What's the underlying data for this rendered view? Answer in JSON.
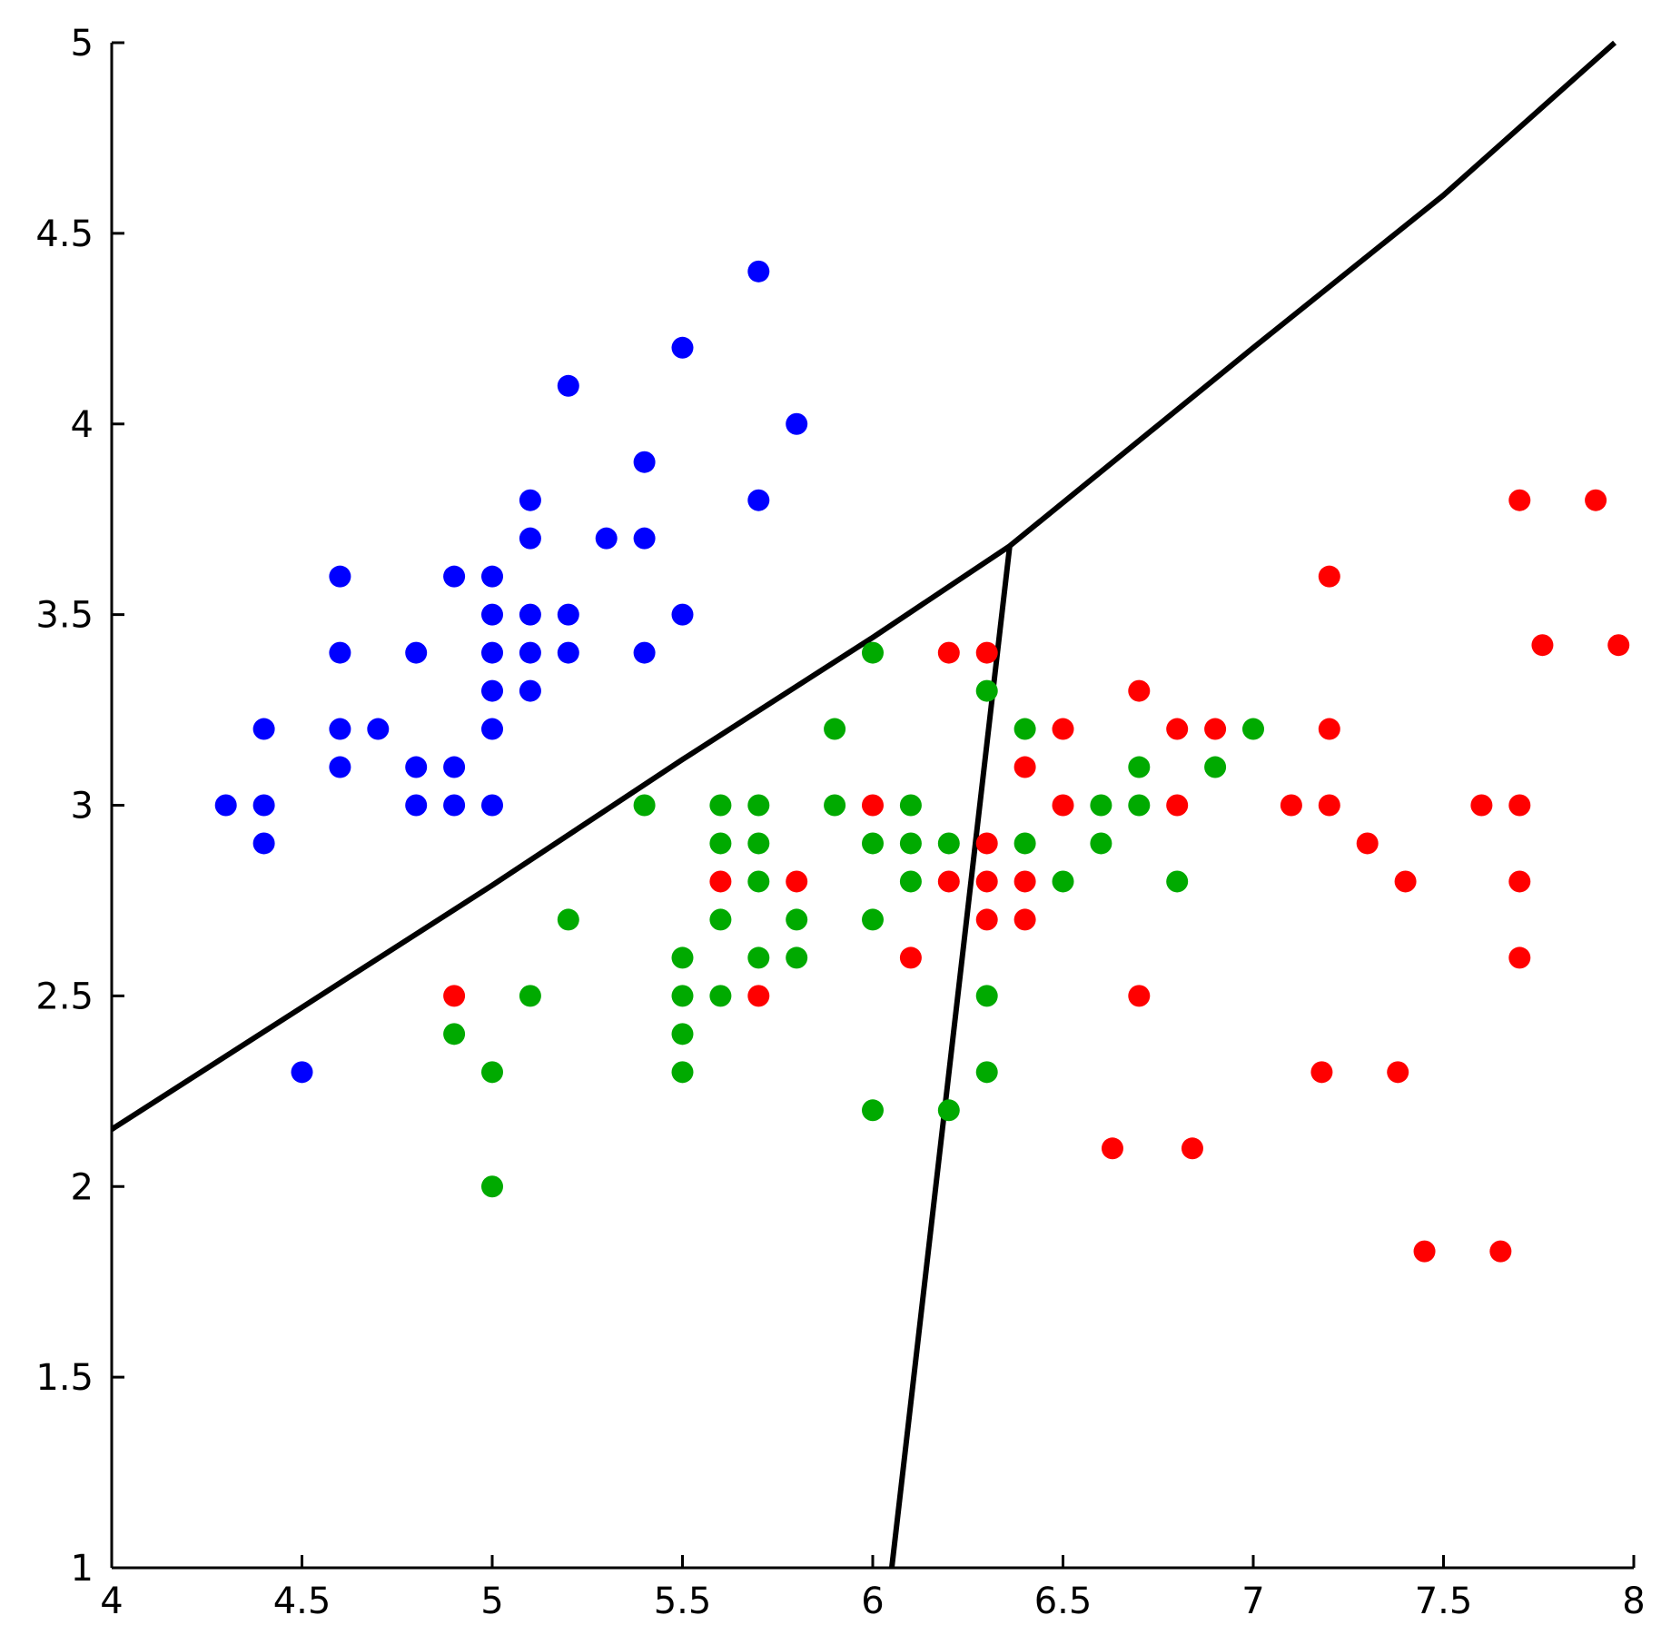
{
  "chart_data": {
    "type": "scatter",
    "xlim": [
      4,
      8
    ],
    "ylim": [
      1,
      5
    ],
    "xticks": [
      4,
      4.5,
      5,
      5.5,
      6,
      6.5,
      7,
      7.5,
      8
    ],
    "yticks": [
      1,
      1.5,
      2,
      2.5,
      3,
      3.5,
      4,
      4.5,
      5
    ],
    "grid": false,
    "series": [
      {
        "color": "#0000ff",
        "x": [
          4.3,
          4.4,
          4.4,
          4.4,
          4.5,
          4.6,
          4.6,
          4.6,
          4.6,
          4.7,
          4.8,
          4.8,
          4.8,
          4.9,
          4.9,
          4.9,
          5.0,
          5.0,
          5.0,
          5.0,
          5.0,
          5.0,
          5.1,
          5.1,
          5.1,
          5.1,
          5.1,
          5.2,
          5.2,
          5.2,
          5.3,
          5.4,
          5.4,
          5.4,
          5.5,
          5.5,
          5.7,
          5.7,
          5.8
        ],
        "values": [
          3.0,
          3.2,
          3.0,
          2.9,
          2.3,
          3.6,
          3.4,
          3.2,
          3.1,
          3.2,
          3.4,
          3.1,
          3.0,
          3.6,
          3.1,
          3.0,
          3.6,
          3.5,
          3.4,
          3.3,
          3.2,
          3.0,
          3.8,
          3.7,
          3.5,
          3.4,
          3.3,
          4.1,
          3.5,
          3.4,
          3.7,
          3.9,
          3.7,
          3.4,
          4.2,
          3.5,
          4.4,
          3.8,
          4.0
        ]
      },
      {
        "color": "#00aa00",
        "x": [
          5.4,
          5.2,
          5.1,
          4.9,
          5.0,
          5.0,
          5.5,
          5.5,
          5.5,
          5.5,
          5.6,
          5.6,
          5.6,
          5.6,
          5.7,
          5.7,
          5.7,
          5.7,
          5.8,
          5.8,
          5.9,
          5.9,
          6.0,
          6.0,
          6.0,
          6.0,
          6.1,
          6.1,
          6.1,
          6.2,
          6.2,
          6.3,
          6.3,
          6.3,
          6.4,
          6.4,
          6.5,
          6.6,
          6.6,
          6.7,
          6.7,
          6.8,
          6.9,
          7.0
        ],
        "values": [
          3.0,
          2.7,
          2.5,
          2.4,
          2.3,
          2.0,
          2.6,
          2.5,
          2.4,
          2.3,
          3.0,
          2.9,
          2.7,
          2.5,
          3.0,
          2.9,
          2.8,
          2.6,
          2.7,
          2.6,
          3.2,
          3.0,
          3.4,
          2.9,
          2.7,
          2.2,
          3.0,
          2.9,
          2.8,
          2.9,
          2.2,
          3.3,
          2.5,
          2.3,
          3.2,
          2.9,
          2.8,
          3.0,
          2.9,
          3.1,
          3.0,
          2.8,
          3.1,
          3.2
        ]
      },
      {
        "color": "#ff0000",
        "x": [
          4.9,
          5.6,
          5.7,
          5.8,
          6.0,
          6.1,
          6.2,
          6.2,
          6.3,
          6.3,
          6.3,
          6.3,
          6.4,
          6.4,
          6.4,
          6.5,
          6.5,
          6.63,
          6.7,
          6.7,
          6.8,
          6.8,
          6.84,
          6.9,
          7.1,
          7.18,
          7.2,
          7.2,
          7.2,
          7.3,
          7.38,
          7.4,
          7.45,
          7.6,
          7.65,
          7.7,
          7.7,
          7.7,
          7.7,
          7.76,
          7.9,
          7.96
        ],
        "values": [
          2.5,
          2.8,
          2.5,
          2.8,
          3.0,
          2.6,
          3.4,
          2.8,
          3.4,
          2.9,
          2.8,
          2.7,
          3.1,
          2.8,
          2.7,
          3.2,
          3.0,
          2.1,
          3.3,
          2.5,
          3.2,
          3.0,
          2.1,
          3.2,
          3.0,
          2.3,
          3.6,
          3.2,
          3.0,
          2.9,
          2.3,
          2.8,
          1.83,
          3.0,
          1.83,
          3.8,
          3.0,
          2.8,
          2.6,
          3.42,
          3.8,
          3.42
        ]
      }
    ],
    "lines": [
      {
        "color": "#000000",
        "x": [
          4,
          4.5,
          5,
          5.5,
          6,
          6.36,
          7,
          7.5,
          7.95
        ],
        "values": [
          2.15,
          2.47,
          2.79,
          3.12,
          3.44,
          3.68,
          4.2,
          4.6,
          5.0
        ]
      },
      {
        "color": "#000000",
        "x": [
          6.36,
          6.05
        ],
        "values": [
          3.68,
          1.0
        ]
      }
    ]
  }
}
